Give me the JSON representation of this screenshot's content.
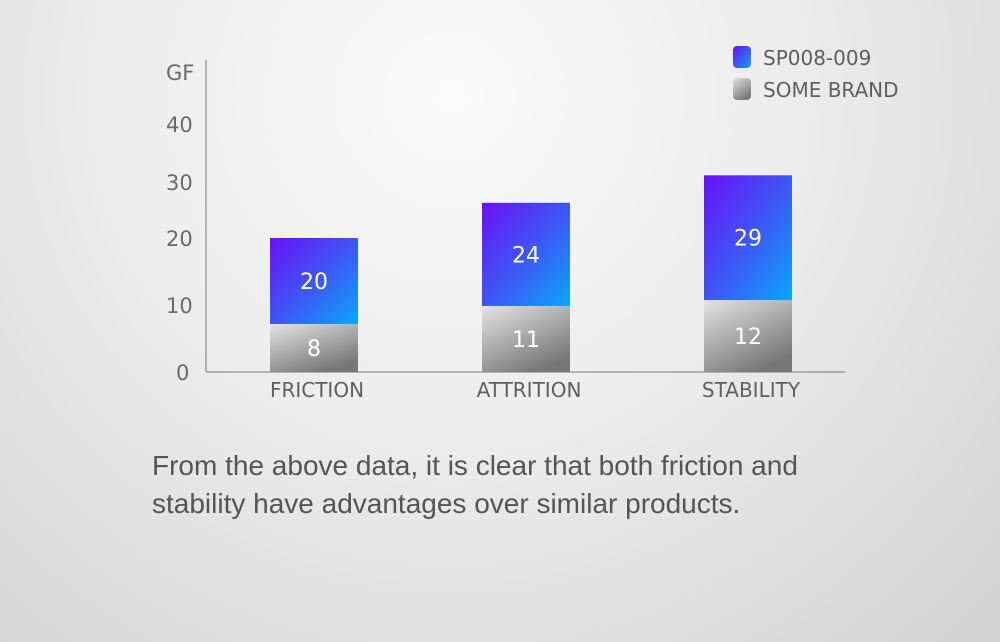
{
  "chart_data": {
    "type": "bar",
    "stacked": true,
    "ylabel": "GF",
    "yticks": [
      "0",
      "10",
      "20",
      "30",
      "40"
    ],
    "ylim": [
      0,
      40
    ],
    "categories": [
      "FRICTION",
      "ATTRITION",
      "STABILITY"
    ],
    "series": [
      {
        "name": "SOME BRAND",
        "values": [
          8,
          11,
          12
        ],
        "color": "#8a8a8a"
      },
      {
        "name": "SP008-009",
        "values": [
          20,
          24,
          29
        ],
        "color": "#6a17f5"
      }
    ],
    "legend": "top-right"
  },
  "caption": "From the above data, it is clear that both friction and stability have advantages over similar products."
}
